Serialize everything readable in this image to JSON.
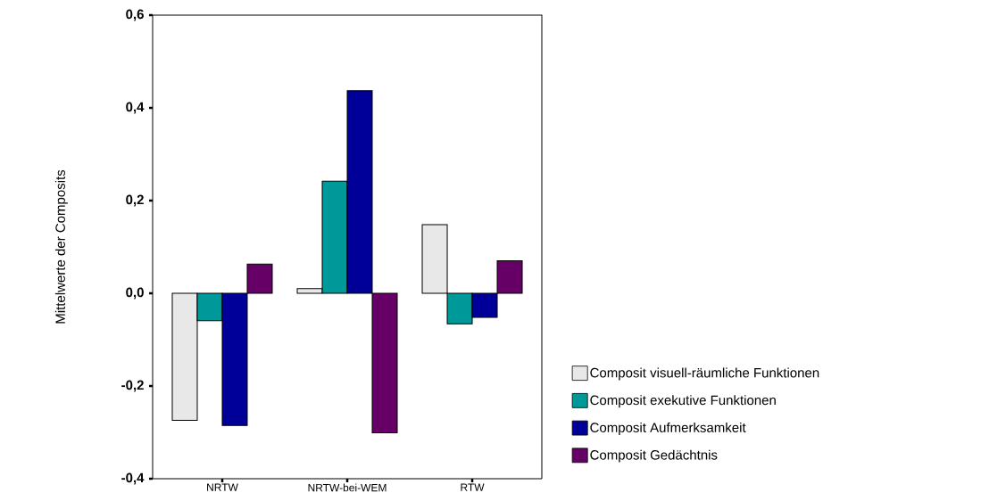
{
  "chart_data": {
    "type": "bar",
    "ylabel": "Mittelwerte der Composits",
    "categories": [
      "NRTW",
      "NRTW-bei-WEM",
      "RTW"
    ],
    "series": [
      {
        "name": "Composit visuell-räumliche Funktionen",
        "color": "#e8e8e8",
        "values": [
          -0.274,
          0.01,
          0.148
        ]
      },
      {
        "name": "Composit exekutive Funktionen",
        "color": "#009999",
        "values": [
          -0.059,
          0.242,
          -0.066
        ]
      },
      {
        "name": "Composit Aufmerksamkeit",
        "color": "#000099",
        "values": [
          -0.285,
          0.437,
          -0.052
        ]
      },
      {
        "name": "Composit Gedächtnis",
        "color": "#660066",
        "values": [
          0.063,
          -0.301,
          0.07
        ]
      }
    ],
    "ylim": [
      -0.4,
      0.6
    ],
    "yticks": [
      {
        "value": -0.4,
        "label": "-0,4"
      },
      {
        "value": -0.2,
        "label": "-0,2"
      },
      {
        "value": 0,
        "label": "0,0"
      },
      {
        "value": 0.2,
        "label": "0,2"
      },
      {
        "value": 0.4,
        "label": "0,4"
      },
      {
        "value": 0.6,
        "label": "0,6"
      }
    ],
    "grid": false,
    "legend": "right"
  }
}
